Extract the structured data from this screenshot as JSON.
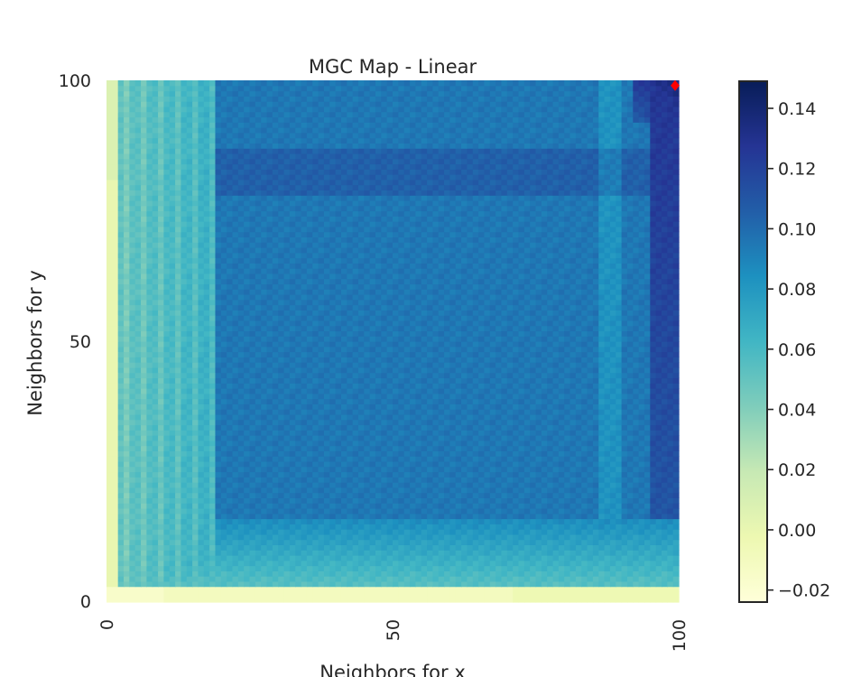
{
  "chart_data": {
    "type": "heatmap",
    "title": "MGC Map - Linear",
    "xlabel": "Neighbors for x",
    "ylabel": "Neighbors for y",
    "xlim": [
      0,
      100
    ],
    "ylim": [
      0,
      100
    ],
    "x_ticks": [
      "0",
      "50",
      "100"
    ],
    "y_ticks": [
      "0",
      "50",
      "100"
    ],
    "colorbar": {
      "colormap": "YlGnBu",
      "range": [
        -0.024,
        0.149
      ],
      "ticks": [
        "0.14",
        "0.12",
        "0.10",
        "0.08",
        "0.06",
        "0.04",
        "0.02",
        "0.00",
        "−0.02"
      ],
      "tick_values": [
        0.14,
        0.12,
        0.1,
        0.08,
        0.06,
        0.04,
        0.02,
        0.0,
        -0.02
      ]
    },
    "grid_resolution": 100,
    "region_values": {
      "bottom_edge_rows_0_2": -0.01,
      "left_edge_cols_0_1": 0.0,
      "low_band_rows_3_15": 0.055,
      "low_band_cols_2_18": 0.045,
      "interior": 0.095,
      "interior_dark_band_rows_78_86": 0.105,
      "right_column_cols_95_100": 0.11,
      "top_right_corner": 0.14
    },
    "optimal_scale": {
      "x": 100,
      "y": 99,
      "color": "#ff0000"
    }
  }
}
